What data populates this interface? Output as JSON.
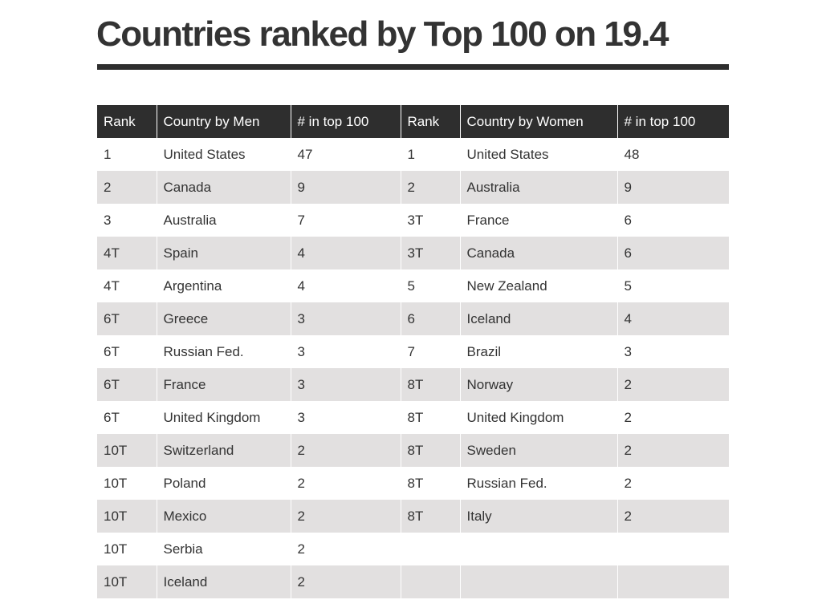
{
  "title": "Countries ranked by Top 100 on 19.4",
  "colors": {
    "header_bg": "#2e2e2e",
    "header_text": "#ffffff",
    "stripe": "#e2e0e0",
    "text": "#333333"
  },
  "chart_data": {
    "type": "table",
    "title": "Countries ranked by Top 100 on 19.4",
    "columns": [
      "Rank",
      "Country by Men",
      "# in top 100",
      "Rank",
      "Country by Women",
      "# in top 100"
    ],
    "rows": [
      [
        "1",
        "United States",
        "47",
        "1",
        "United States",
        "48"
      ],
      [
        "2",
        "Canada",
        "9",
        "2",
        "Australia",
        "9"
      ],
      [
        "3",
        "Australia",
        "7",
        "3T",
        "France",
        "6"
      ],
      [
        "4T",
        "Spain",
        "4",
        "3T",
        "Canada",
        "6"
      ],
      [
        "4T",
        "Argentina",
        "4",
        "5",
        "New Zealand",
        "5"
      ],
      [
        "6T",
        "Greece",
        "3",
        "6",
        "Iceland",
        "4"
      ],
      [
        "6T",
        "Russian Fed.",
        "3",
        "7",
        "Brazil",
        "3"
      ],
      [
        "6T",
        "France",
        "3",
        "8T",
        "Norway",
        "2"
      ],
      [
        "6T",
        "United Kingdom",
        "3",
        "8T",
        "United Kingdom",
        "2"
      ],
      [
        "10T",
        "Switzerland",
        "2",
        "8T",
        "Sweden",
        "2"
      ],
      [
        "10T",
        "Poland",
        "2",
        "8T",
        "Russian Fed.",
        "2"
      ],
      [
        "10T",
        "Mexico",
        "2",
        "8T",
        "Italy",
        "2"
      ],
      [
        "10T",
        "Serbia",
        "2",
        "",
        "",
        ""
      ],
      [
        "10T",
        "Iceland",
        "2",
        "",
        "",
        ""
      ]
    ]
  }
}
